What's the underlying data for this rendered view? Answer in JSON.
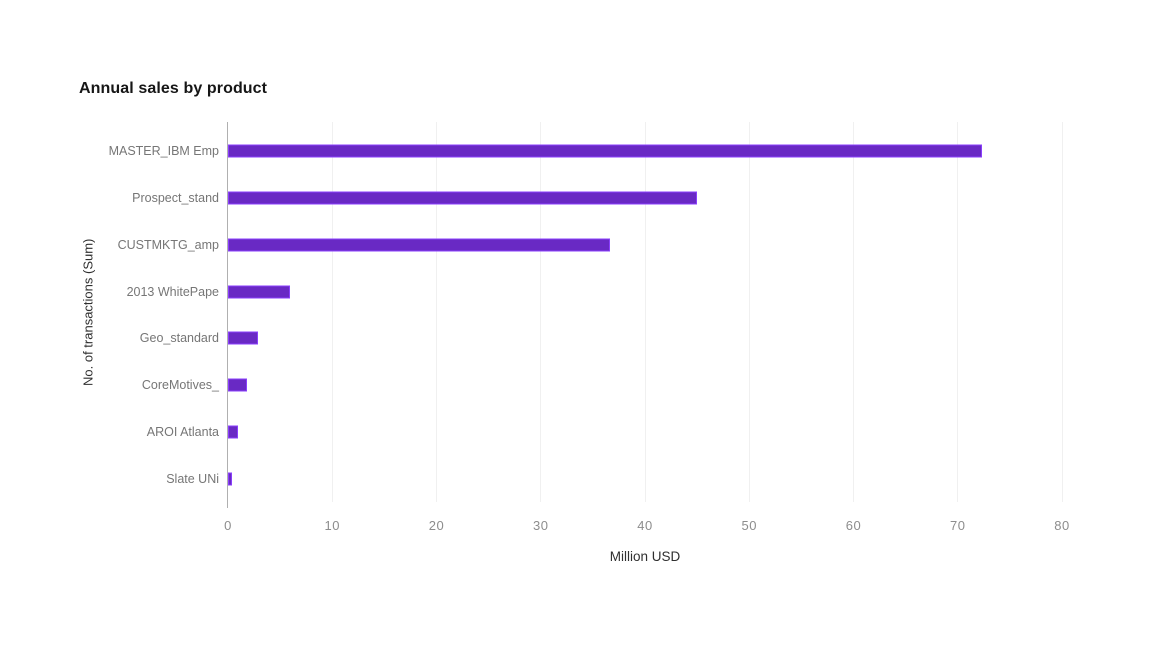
{
  "chart_data": {
    "type": "bar",
    "orientation": "horizontal",
    "title": "Annual sales by product",
    "xlabel": "Million USD",
    "ylabel": "No. of transactions (Sum)",
    "xlim": [
      0,
      80
    ],
    "xticks": [
      0,
      10,
      20,
      30,
      40,
      50,
      60,
      70,
      80
    ],
    "grid": true,
    "legend": false,
    "categories": [
      "MASTER_IBM Emp",
      "Prospect_stand",
      "CUSTMKTG_amp",
      "2013 WhitePape",
      "Geo_standard",
      "CoreMotives_",
      "AROI Atlanta",
      "Slate UNi"
    ],
    "values": [
      72.3,
      45,
      36.6,
      5.9,
      2.9,
      1.8,
      1.0,
      0.4
    ]
  },
  "colors": {
    "background": "#ffffff",
    "bar": "#6929c4",
    "bar_border": "#8a3ffc",
    "gridline": "#f0f0f0",
    "axis_line": "#b0b0b0",
    "title": "#161616",
    "category_label": "#767676",
    "tick_label": "#8d8d8d",
    "axis_title": "#2f2f2f"
  }
}
